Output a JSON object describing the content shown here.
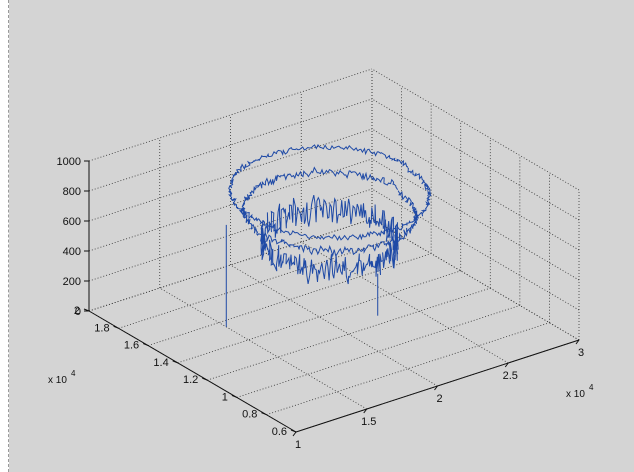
{
  "chart_data": {
    "type": "line3d",
    "title": "",
    "axes": {
      "x": {
        "range": [
          1,
          3
        ],
        "ticks": [
          "1",
          "1.5",
          "2",
          "2.5",
          "3"
        ],
        "multiplier_base": "x 10",
        "multiplier_exp": "4",
        "label": ""
      },
      "y": {
        "range": [
          0.6,
          2
        ],
        "ticks": [
          "0.6",
          "0.8",
          "1",
          "1.2",
          "1.4",
          "1.6",
          "1.8",
          "2"
        ],
        "multiplier_base": "x 10",
        "multiplier_exp": "4",
        "label": ""
      },
      "z": {
        "range": [
          0,
          1000
        ],
        "ticks": [
          "0",
          "200",
          "400",
          "600",
          "800",
          "1000"
        ],
        "label": ""
      }
    },
    "grid": true,
    "box_style": "dotted",
    "line_color": "#1f4aa6",
    "curves": [
      {
        "center_x": 2.0,
        "center_y": 1.33,
        "radius_x": 0.55,
        "radius_y": 0.42,
        "z_start": 880,
        "z_end": 860,
        "noise": 20
      },
      {
        "center_x": 2.0,
        "center_y": 1.33,
        "radius_x": 0.48,
        "radius_y": 0.36,
        "z_start": 760,
        "z_end": 720,
        "noise": 30
      },
      {
        "center_x": 2.0,
        "center_y": 1.33,
        "radius_x": 0.38,
        "radius_y": 0.28,
        "z_start": 560,
        "z_end": 540,
        "noise": 110
      }
    ],
    "spikes": [
      {
        "x": 1.5,
        "y": 1.55,
        "z_top": 680,
        "z_bottom": 0
      },
      {
        "x": 2.1,
        "y": 1.1,
        "z_top": 430,
        "z_bottom": 150
      }
    ]
  }
}
